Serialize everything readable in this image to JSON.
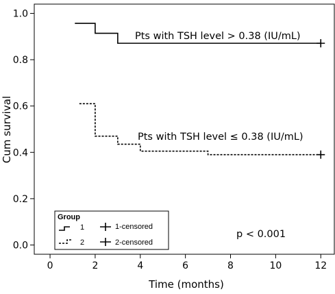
{
  "chart_data": {
    "type": "line",
    "subtype": "kaplan-meier",
    "xlabel": "Time (months)",
    "ylabel": "Cum survival",
    "xlim": [
      -0.7,
      12.6
    ],
    "ylim": [
      -0.04,
      1.04
    ],
    "xticks": [
      0,
      2,
      4,
      6,
      8,
      10,
      12
    ],
    "yticks": [
      0.0,
      0.2,
      0.4,
      0.6,
      0.8,
      1.0
    ],
    "ytick_labels": [
      "0.0",
      "0.2",
      "0.4",
      "0.6",
      "0.8",
      "1.0"
    ],
    "grid": false,
    "series": [
      {
        "name": "1",
        "style": "solid",
        "x": [
          1.1,
          2.0,
          3.0,
          12.0
        ],
        "y": [
          0.957,
          0.914,
          0.871,
          0.871
        ],
        "censored": [
          {
            "x": 12.0,
            "y": 0.871
          }
        ],
        "annotation": "Pts with TSH level > 0.38 (IU/mL)"
      },
      {
        "name": "2",
        "style": "dashed",
        "x": [
          1.3,
          2.0,
          3.0,
          4.0,
          7.0,
          12.0
        ],
        "y": [
          0.61,
          0.47,
          0.435,
          0.405,
          0.39,
          0.39
        ],
        "censored": [
          {
            "x": 12.0,
            "y": 0.39
          }
        ],
        "annotation": "Pts with TSH level ≤ 0.38 (IU/mL)"
      }
    ],
    "legend": {
      "title": "Group",
      "placement": "bottom-left",
      "entries": [
        "1",
        "2"
      ],
      "censored_entries": [
        "1-censored",
        "2-censored"
      ]
    },
    "pvalue_text": "p < 0.001"
  }
}
